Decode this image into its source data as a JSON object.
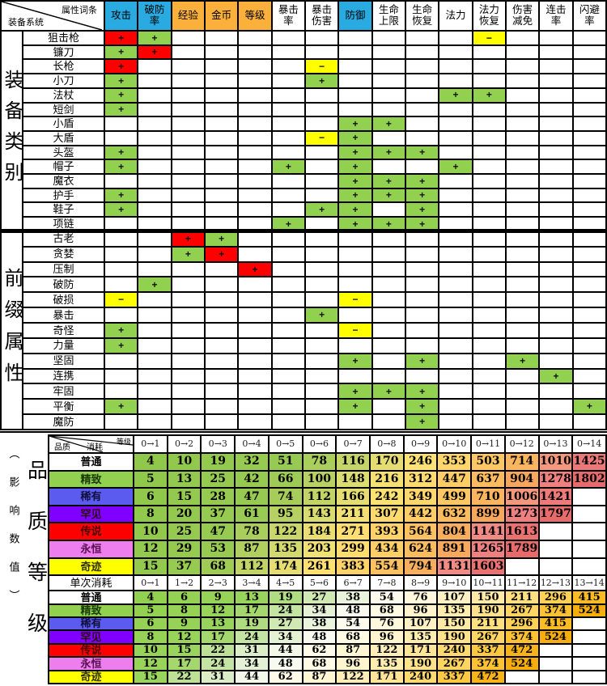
{
  "top_table": {
    "corner": {
      "top_right": "属性词条",
      "bottom_left": "装备系统"
    },
    "columns": [
      {
        "label": "攻击",
        "bg": "#29ABE2"
      },
      {
        "label": "破防率",
        "bg": "#29ABE2"
      },
      {
        "label": "经验",
        "bg": "#FBB03B"
      },
      {
        "label": "金币",
        "bg": "#FBB03B"
      },
      {
        "label": "等级",
        "bg": "#FBB03B"
      },
      {
        "label": "暴击率",
        "bg": "#FFFFFF"
      },
      {
        "label": "暴击伤害",
        "bg": "#FFFFFF"
      },
      {
        "label": "防御",
        "bg": "#29ABE2"
      },
      {
        "label": "生命上限",
        "bg": "#FFFFFF"
      },
      {
        "label": "生命恢复",
        "bg": "#FFFFFF"
      },
      {
        "label": "法力",
        "bg": "#FFFFFF"
      },
      {
        "label": "法力恢复",
        "bg": "#FFFFFF"
      },
      {
        "label": "伤害减免",
        "bg": "#FFFFFF"
      },
      {
        "label": "连击率",
        "bg": "#FFFFFF"
      },
      {
        "label": "闪避率",
        "bg": "#FFFFFF"
      }
    ],
    "sign_colors": {
      "R": "#FF0000",
      "G": "#92D050",
      "Y": "#FFFF00"
    },
    "sections": [
      {
        "band_label": "装备类别",
        "rows": [
          {
            "label": "狙击枪",
            "cells": [
              [
                0,
                "R",
                "+"
              ],
              [
                1,
                "G",
                "+"
              ],
              [
                11,
                "Y",
                "−"
              ]
            ]
          },
          {
            "label": "镰刀",
            "cells": [
              [
                0,
                "G",
                "+"
              ],
              [
                1,
                "R",
                "+"
              ]
            ]
          },
          {
            "label": "长枪",
            "cells": [
              [
                0,
                "R",
                "+"
              ],
              [
                6,
                "Y",
                "−"
              ]
            ]
          },
          {
            "label": "小刀",
            "cells": [
              [
                0,
                "G",
                "+"
              ],
              [
                6,
                "G",
                "+"
              ]
            ]
          },
          {
            "label": "法杖",
            "cells": [
              [
                0,
                "G",
                "+"
              ],
              [
                10,
                "G",
                "+"
              ],
              [
                11,
                "G",
                "+"
              ]
            ]
          },
          {
            "label": "短剑",
            "cells": [
              [
                0,
                "G",
                "+"
              ]
            ]
          },
          {
            "label": "小盾",
            "cells": [
              [
                7,
                "G",
                "+"
              ],
              [
                8,
                "G",
                "+"
              ]
            ]
          },
          {
            "label": "大盾",
            "cells": [
              [
                6,
                "Y",
                "−"
              ],
              [
                7,
                "G",
                "+"
              ]
            ]
          },
          {
            "label": "头盔",
            "cells": [
              [
                0,
                "G",
                "+"
              ],
              [
                7,
                "G",
                "+"
              ],
              [
                8,
                "G",
                "+"
              ],
              [
                9,
                "G",
                "+"
              ]
            ]
          },
          {
            "label": "帽子",
            "cells": [
              [
                0,
                "G",
                "+"
              ],
              [
                5,
                "G",
                "+"
              ],
              [
                7,
                "G",
                "+"
              ],
              [
                10,
                "G",
                "+"
              ]
            ]
          },
          {
            "label": "魔衣",
            "cells": [
              [
                7,
                "G",
                "+"
              ],
              [
                8,
                "G",
                "+"
              ],
              [
                9,
                "G",
                "+"
              ]
            ]
          },
          {
            "label": "护手",
            "cells": [
              [
                0,
                "G",
                "+"
              ],
              [
                7,
                "G",
                "+"
              ],
              [
                8,
                "G",
                "+"
              ],
              [
                9,
                "G",
                "+"
              ]
            ]
          },
          {
            "label": "鞋子",
            "cells": [
              [
                0,
                "G",
                "+"
              ],
              [
                6,
                "G",
                "+"
              ],
              [
                7,
                "G",
                "+"
              ],
              [
                9,
                "G",
                "+"
              ]
            ]
          },
          {
            "label": "项链",
            "cells": [
              [
                5,
                "G",
                "+"
              ],
              [
                7,
                "G",
                "+"
              ],
              [
                8,
                "G",
                "+"
              ],
              [
                9,
                "G",
                "+"
              ]
            ]
          }
        ]
      },
      {
        "band_label": "前缀属性",
        "rows": [
          {
            "label": "古老",
            "cells": [
              [
                2,
                "R",
                "+"
              ],
              [
                3,
                "G",
                "+"
              ]
            ]
          },
          {
            "label": "贪婪",
            "cells": [
              [
                2,
                "G",
                "+"
              ],
              [
                3,
                "R",
                "+"
              ]
            ]
          },
          {
            "label": "压制",
            "cells": [
              [
                4,
                "R",
                "+"
              ]
            ]
          },
          {
            "label": "破防",
            "cells": [
              [
                1,
                "G",
                "+"
              ]
            ]
          },
          {
            "label": "破损",
            "cells": [
              [
                0,
                "Y",
                "−"
              ],
              [
                7,
                "Y",
                "−"
              ]
            ]
          },
          {
            "label": "暴击",
            "cells": [
              [
                6,
                "G",
                "+"
              ]
            ]
          },
          {
            "label": "奇怪",
            "cells": [
              [
                0,
                "G",
                "+"
              ],
              [
                7,
                "Y",
                "−"
              ]
            ]
          },
          {
            "label": "力量",
            "cells": [
              [
                0,
                "G",
                "+"
              ]
            ]
          },
          {
            "label": "坚固",
            "cells": [
              [
                7,
                "G",
                "+"
              ],
              [
                9,
                "G",
                "+"
              ],
              [
                12,
                "G",
                "+"
              ]
            ]
          },
          {
            "label": "连携",
            "cells": [
              [
                13,
                "G",
                "+"
              ]
            ]
          },
          {
            "label": "牢固",
            "cells": [
              [
                7,
                "G",
                "+"
              ],
              [
                8,
                "G",
                "+"
              ],
              [
                9,
                "G",
                "+"
              ]
            ]
          },
          {
            "label": "平衡",
            "cells": [
              [
                0,
                "G",
                "+"
              ],
              [
                7,
                "G",
                "+"
              ],
              [
                9,
                "G",
                "+"
              ],
              [
                14,
                "G",
                "+"
              ]
            ]
          },
          {
            "label": "魔防",
            "cells": [
              [
                9,
                "G",
                "+"
              ]
            ]
          }
        ]
      }
    ]
  },
  "quality_section": {
    "band_label_main": "品质等级",
    "band_label_sub": "（影响数值）",
    "corner": {
      "top_right": "等级",
      "middle": "消耗",
      "bottom_left": "品质"
    },
    "upper": {
      "columns": [
        "0→1",
        "0→2",
        "0→3",
        "0→4",
        "0→5",
        "0→6",
        "0→7",
        "0→8",
        "0→9",
        "0→10",
        "0→11",
        "0→12",
        "0→13",
        "0→14"
      ],
      "rows": [
        {
          "label": "普通",
          "bg": "#FFFFFF",
          "fg": "#000000",
          "values": [
            4,
            10,
            19,
            32,
            51,
            78,
            116,
            170,
            246,
            353,
            503,
            714,
            1010,
            1425
          ]
        },
        {
          "label": "精致",
          "bg": "#92D050",
          "fg": "#1a3a08",
          "values": [
            5,
            13,
            25,
            42,
            66,
            100,
            148,
            216,
            312,
            447,
            637,
            904,
            1278,
            1802
          ]
        },
        {
          "label": "稀有",
          "bg": "#5B5BF0",
          "fg": "#10103a",
          "values": [
            6,
            15,
            28,
            47,
            74,
            112,
            166,
            242,
            349,
            499,
            710,
            1006,
            1421,
            null
          ]
        },
        {
          "label": "罕见",
          "bg": "#7F00FF",
          "fg": "#2b0b0b",
          "values": [
            8,
            20,
            37,
            61,
            95,
            143,
            211,
            307,
            442,
            632,
            899,
            1273,
            1797,
            null
          ]
        },
        {
          "label": "传说",
          "bg": "#FF0000",
          "fg": "#4d0000",
          "values": [
            10,
            25,
            47,
            78,
            122,
            184,
            271,
            393,
            564,
            804,
            1141,
            1613,
            null,
            null
          ]
        },
        {
          "label": "永恒",
          "bg": "#EE7DED",
          "fg": "#57104f",
          "values": [
            12,
            29,
            53,
            87,
            135,
            203,
            299,
            434,
            624,
            891,
            1265,
            1789,
            null,
            null
          ]
        },
        {
          "label": "奇迹",
          "bg": "#FFFF00",
          "fg": "#333300",
          "values": [
            15,
            37,
            68,
            112,
            174,
            261,
            383,
            554,
            794,
            1131,
            1603,
            null,
            null,
            null
          ]
        }
      ]
    },
    "lower": {
      "header_label": "单次消耗",
      "columns": [
        "0→1",
        "1→2",
        "2→3",
        "3→4",
        "4→5",
        "5→6",
        "6→7",
        "7→8",
        "8→9",
        "9→10",
        "10→11",
        "11→12",
        "12→13",
        "13→14"
      ],
      "rows": [
        {
          "label": "普通",
          "bg": "#FFFFFF",
          "fg": "#000000",
          "values": [
            4,
            6,
            9,
            13,
            19,
            27,
            38,
            54,
            76,
            107,
            150,
            211,
            296,
            415
          ]
        },
        {
          "label": "精致",
          "bg": "#92D050",
          "fg": "#1a3a08",
          "values": [
            5,
            8,
            12,
            17,
            24,
            34,
            48,
            68,
            96,
            135,
            190,
            267,
            374,
            524
          ]
        },
        {
          "label": "稀有",
          "bg": "#5B5BF0",
          "fg": "#10103a",
          "values": [
            6,
            9,
            13,
            19,
            27,
            38,
            54,
            76,
            107,
            150,
            211,
            296,
            415,
            null
          ]
        },
        {
          "label": "罕见",
          "bg": "#7F00FF",
          "fg": "#2b0b0b",
          "values": [
            8,
            12,
            17,
            24,
            34,
            48,
            68,
            96,
            135,
            190,
            267,
            374,
            524,
            null
          ]
        },
        {
          "label": "传说",
          "bg": "#FF0000",
          "fg": "#4d0000",
          "values": [
            10,
            15,
            22,
            31,
            44,
            62,
            87,
            122,
            171,
            240,
            337,
            472,
            null,
            null
          ]
        },
        {
          "label": "永恒",
          "bg": "#EE7DED",
          "fg": "#57104f",
          "values": [
            12,
            17,
            24,
            34,
            48,
            68,
            96,
            135,
            190,
            267,
            374,
            524,
            null,
            null
          ]
        },
        {
          "label": "奇迹",
          "bg": "#FFFF00",
          "fg": "#333300",
          "values": [
            15,
            22,
            31,
            44,
            62,
            87,
            122,
            171,
            240,
            337,
            472,
            null,
            null,
            null
          ]
        }
      ]
    },
    "heat_stops_upper": [
      [
        4,
        "#8FC84B"
      ],
      [
        60,
        "#98CA52"
      ],
      [
        100,
        "#B9D163"
      ],
      [
        150,
        "#DCDC72"
      ],
      [
        250,
        "#FFE273"
      ],
      [
        400,
        "#FFD269"
      ],
      [
        640,
        "#FBBB5E"
      ],
      [
        900,
        "#F7A75D"
      ],
      [
        1050,
        "#F19189"
      ],
      [
        1300,
        "#EE7F7E"
      ],
      [
        1802,
        "#E66B6B"
      ]
    ],
    "heat_stops_lower": [
      [
        4,
        "#92D050"
      ],
      [
        15,
        "#99D45C"
      ],
      [
        24,
        "#C4E4A4"
      ],
      [
        34,
        "#E4F1D4"
      ],
      [
        48,
        "#F8FAEF"
      ],
      [
        62,
        "#FFFBE8"
      ],
      [
        96,
        "#FFF4CE"
      ],
      [
        150,
        "#FFE9A6"
      ],
      [
        211,
        "#FFDF7F"
      ],
      [
        296,
        "#FFD155"
      ],
      [
        415,
        "#FABB25"
      ],
      [
        524,
        "#F5AE0D"
      ]
    ]
  }
}
